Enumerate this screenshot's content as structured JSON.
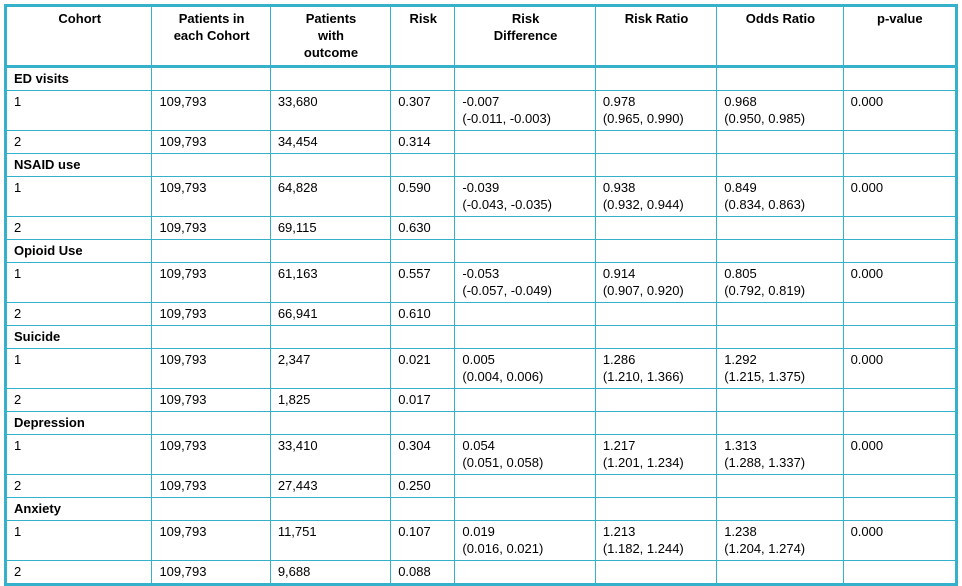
{
  "meta": {
    "border_color": "#35b1cc",
    "text_color": "#000000"
  },
  "table": {
    "headers": [
      "Cohort",
      "Patients in\neach Cohort",
      "Patients\nwith\noutcome",
      "Risk",
      "Risk\nDifference",
      "Risk Ratio",
      "Odds Ratio",
      "p-value"
    ],
    "sections": [
      {
        "name": "ED visits",
        "rows": [
          {
            "cohort": "1",
            "n": "109,793",
            "outcome": "33,680",
            "risk": "0.307",
            "risk_diff": "-0.007\n(-0.011, -0.003)",
            "risk_ratio": "0.978\n(0.965, 0.990)",
            "odds_ratio": "0.968\n(0.950, 0.985)",
            "p": "0.000"
          },
          {
            "cohort": "2",
            "n": "109,793",
            "outcome": "34,454",
            "risk": "0.314",
            "risk_diff": "",
            "risk_ratio": "",
            "odds_ratio": "",
            "p": ""
          }
        ]
      },
      {
        "name": "NSAID use",
        "rows": [
          {
            "cohort": "1",
            "n": "109,793",
            "outcome": "64,828",
            "risk": "0.590",
            "risk_diff": "-0.039\n(-0.043, -0.035)",
            "risk_ratio": "0.938\n(0.932, 0.944)",
            "odds_ratio": "0.849\n(0.834, 0.863)",
            "p": "0.000"
          },
          {
            "cohort": "2",
            "n": "109,793",
            "outcome": "69,115",
            "risk": "0.630",
            "risk_diff": "",
            "risk_ratio": "",
            "odds_ratio": "",
            "p": ""
          }
        ]
      },
      {
        "name": "Opioid Use",
        "rows": [
          {
            "cohort": "1",
            "n": "109,793",
            "outcome": "61,163",
            "risk": "0.557",
            "risk_diff": "-0.053\n(-0.057, -0.049)",
            "risk_ratio": "0.914\n(0.907, 0.920)",
            "odds_ratio": "0.805\n(0.792, 0.819)",
            "p": "0.000"
          },
          {
            "cohort": "2",
            "n": "109,793",
            "outcome": "66,941",
            "risk": "0.610",
            "risk_diff": "",
            "risk_ratio": "",
            "odds_ratio": "",
            "p": ""
          }
        ]
      },
      {
        "name": "Suicide",
        "rows": [
          {
            "cohort": "1",
            "n": "109,793",
            "outcome": "2,347",
            "risk": "0.021",
            "risk_diff": "0.005\n(0.004, 0.006)",
            "risk_ratio": "1.286\n(1.210, 1.366)",
            "odds_ratio": "1.292\n(1.215, 1.375)",
            "p": "0.000"
          },
          {
            "cohort": "2",
            "n": "109,793",
            "outcome": "1,825",
            "risk": "0.017",
            "risk_diff": "",
            "risk_ratio": "",
            "odds_ratio": "",
            "p": ""
          }
        ]
      },
      {
        "name": "Depression",
        "rows": [
          {
            "cohort": "1",
            "n": "109,793",
            "outcome": "33,410",
            "risk": "0.304",
            "risk_diff": "0.054\n(0.051, 0.058)",
            "risk_ratio": "1.217\n(1.201, 1.234)",
            "odds_ratio": "1.313\n(1.288, 1.337)",
            "p": "0.000"
          },
          {
            "cohort": "2",
            "n": "109,793",
            "outcome": "27,443",
            "risk": "0.250",
            "risk_diff": "",
            "risk_ratio": "",
            "odds_ratio": "",
            "p": ""
          }
        ]
      },
      {
        "name": "Anxiety",
        "rows": [
          {
            "cohort": "1",
            "n": "109,793",
            "outcome": "11,751",
            "risk": "0.107",
            "risk_diff": "0.019\n(0.016, 0.021)",
            "risk_ratio": "1.213\n(1.182, 1.244)",
            "odds_ratio": "1.238\n(1.204, 1.274)",
            "p": "0.000"
          },
          {
            "cohort": "2",
            "n": "109,793",
            "outcome": "9,688",
            "risk": "0.088",
            "risk_diff": "",
            "risk_ratio": "",
            "odds_ratio": "",
            "p": ""
          }
        ]
      }
    ]
  }
}
